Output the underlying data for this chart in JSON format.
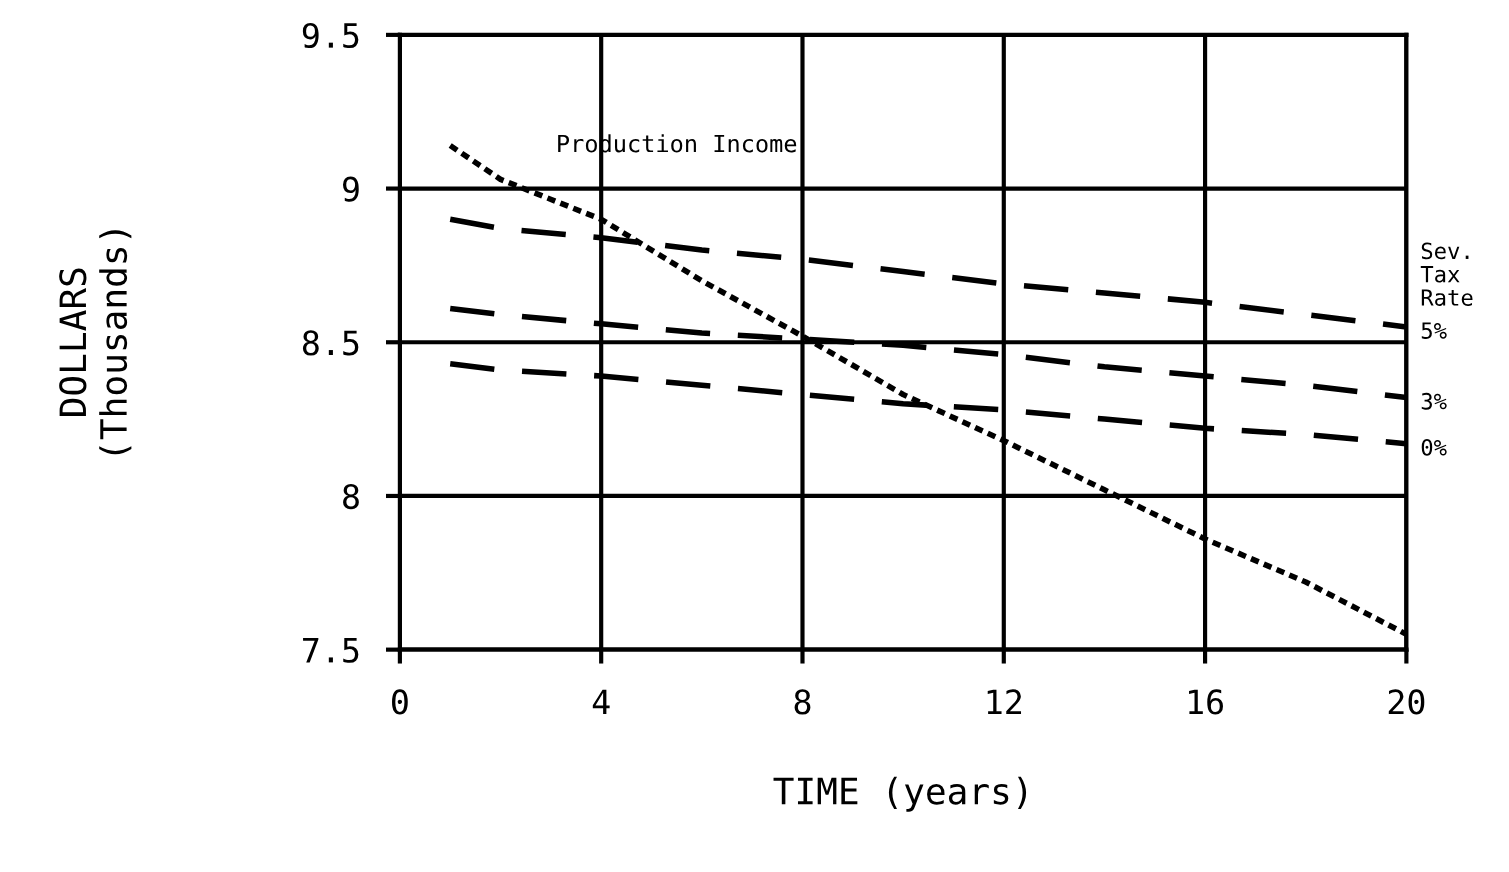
{
  "chart_data": {
    "type": "line",
    "xlabel": "TIME (years)",
    "ylabel": "DOLLARS\n(Thousands)",
    "legend_title": "Sev.\nTax\nRate",
    "x": [
      1,
      2,
      4,
      6,
      8,
      10,
      12,
      14,
      16,
      18,
      20
    ],
    "series": [
      {
        "name": "Production Income",
        "color": "#000000",
        "line_style": "dotted",
        "values": [
          9.14,
          9.03,
          8.9,
          8.7,
          8.52,
          8.33,
          8.18,
          8.02,
          7.86,
          7.72,
          7.55
        ]
      },
      {
        "name": "5%",
        "color": "#000000",
        "line_style": "dashed",
        "values": [
          8.9,
          8.87,
          8.84,
          8.8,
          8.77,
          8.73,
          8.69,
          8.66,
          8.63,
          8.59,
          8.55
        ]
      },
      {
        "name": "3%",
        "color": "#000000",
        "line_style": "dashed",
        "values": [
          8.61,
          8.59,
          8.56,
          8.53,
          8.51,
          8.49,
          8.46,
          8.42,
          8.39,
          8.36,
          8.32
        ]
      },
      {
        "name": "0%",
        "color": "#000000",
        "line_style": "dashed",
        "values": [
          8.43,
          8.41,
          8.39,
          8.36,
          8.33,
          8.3,
          8.28,
          8.25,
          8.22,
          8.2,
          8.17
        ]
      }
    ],
    "xlim": [
      0,
      20
    ],
    "xticks": [
      0,
      4,
      8,
      12,
      16,
      20
    ],
    "ylim": [
      7.5,
      9.5
    ],
    "yticks": [
      7.5,
      8,
      8.5,
      9,
      9.5
    ],
    "grid": true,
    "legend": false,
    "marker": "none"
  }
}
